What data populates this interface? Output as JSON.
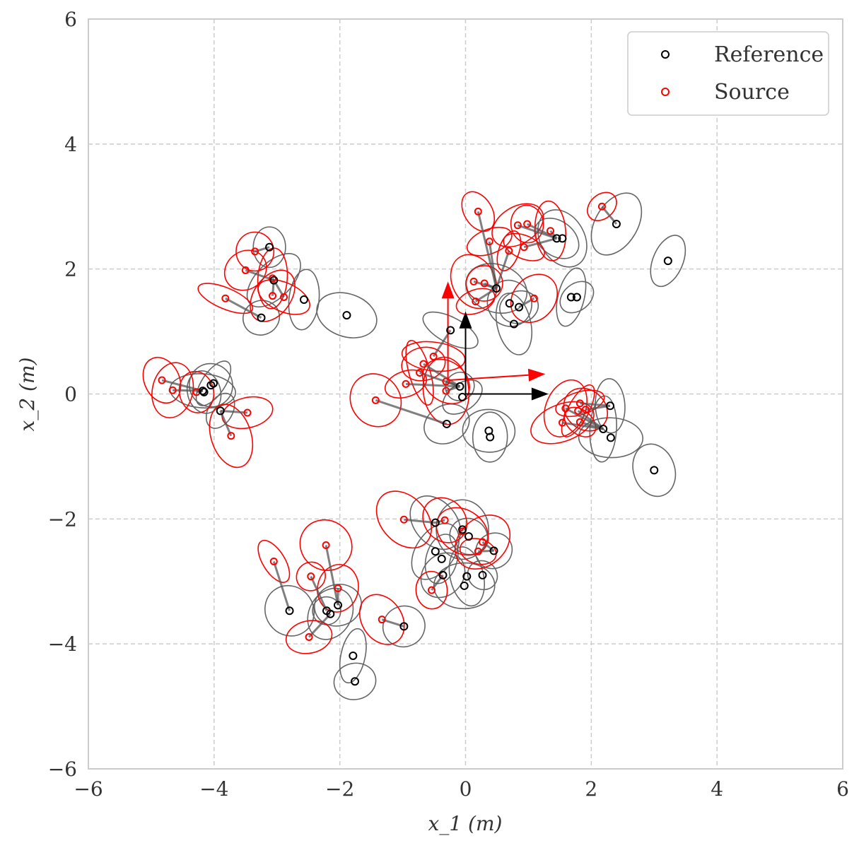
{
  "chart_data": {
    "type": "scatter",
    "xlabel": "x_1 (m)",
    "ylabel": "x_2 (m)",
    "xlim": [
      -6,
      6
    ],
    "ylim": [
      -6,
      6
    ],
    "xticks": [
      -6,
      -4,
      -2,
      0,
      2,
      4,
      6
    ],
    "yticks": [
      -6,
      -4,
      -2,
      0,
      2,
      4,
      6
    ],
    "grid": true,
    "legend_position": "top-right",
    "legend": [
      {
        "label": "Reference",
        "color": "#000000"
      },
      {
        "label": "Source",
        "color": "#ff0000"
      }
    ],
    "colors": {
      "reference": "#000000",
      "source": "#ff0000",
      "reference_ellipse": "#666666",
      "link": "#555555",
      "grid": "#cccccc",
      "frame": "#cccccc"
    },
    "frames": {
      "reference": {
        "origin": [
          0,
          0
        ],
        "x_axis_end": [
          1.32,
          0
        ],
        "y_axis_end": [
          0,
          1.32
        ]
      },
      "source": {
        "origin": [
          -0.28,
          0.22
        ],
        "x_axis_end": [
          1.27,
          0.32
        ],
        "y_axis_end": [
          -0.28,
          1.8
        ]
      }
    },
    "series": [
      {
        "name": "Reference",
        "points": [
          [
            3.22,
            2.13
          ],
          [
            2.4,
            2.72
          ],
          [
            1.45,
            2.49
          ],
          [
            1.54,
            2.49
          ],
          [
            1.68,
            1.55
          ],
          [
            1.77,
            1.55
          ],
          [
            0.49,
            1.69
          ],
          [
            0.7,
            1.45
          ],
          [
            0.85,
            1.39
          ],
          [
            0.77,
            1.12
          ],
          [
            -0.24,
            1.02
          ],
          [
            -3.12,
            2.35
          ],
          [
            -3.05,
            1.82
          ],
          [
            -3.25,
            1.22
          ],
          [
            -2.57,
            1.51
          ],
          [
            -1.89,
            1.26
          ],
          [
            -4.01,
            0.17
          ],
          [
            -4.05,
            0.14
          ],
          [
            -4.16,
            0.03
          ],
          [
            -4.18,
            0.05
          ],
          [
            -3.9,
            -0.27
          ],
          [
            -0.09,
            0.12
          ],
          [
            -0.05,
            -0.05
          ],
          [
            -0.3,
            -0.48
          ],
          [
            0.37,
            -0.59
          ],
          [
            0.39,
            -0.69
          ],
          [
            2.3,
            -0.19
          ],
          [
            2.19,
            -0.56
          ],
          [
            2.31,
            -0.7
          ],
          [
            3.0,
            -1.22
          ],
          [
            -0.48,
            -2.06
          ],
          [
            -0.05,
            -2.17
          ],
          [
            0.05,
            -2.28
          ],
          [
            -0.48,
            -2.52
          ],
          [
            -0.38,
            -2.64
          ],
          [
            0.45,
            -2.51
          ],
          [
            -0.36,
            -2.9
          ],
          [
            0.02,
            -2.92
          ],
          [
            0.27,
            -2.9
          ],
          [
            -0.02,
            -3.07
          ],
          [
            -2.8,
            -3.47
          ],
          [
            -2.21,
            -3.47
          ],
          [
            -2.15,
            -3.52
          ],
          [
            -2.03,
            -3.38
          ],
          [
            -1.79,
            -4.19
          ],
          [
            -1.76,
            -4.6
          ],
          [
            -0.98,
            -3.72
          ]
        ]
      },
      {
        "name": "Source",
        "points": [
          [
            0.2,
            2.92
          ],
          [
            0.98,
            2.72
          ],
          [
            0.83,
            2.7
          ],
          [
            1.35,
            2.61
          ],
          [
            0.38,
            2.44
          ],
          [
            0.69,
            2.29
          ],
          [
            0.93,
            2.35
          ],
          [
            2.17,
            3.0
          ],
          [
            0.13,
            1.8
          ],
          [
            0.3,
            1.77
          ],
          [
            0.16,
            1.48
          ],
          [
            1.09,
            1.53
          ],
          [
            -3.35,
            2.28
          ],
          [
            -3.5,
            1.98
          ],
          [
            -3.07,
            1.85
          ],
          [
            -3.07,
            1.57
          ],
          [
            -2.89,
            1.55
          ],
          [
            -3.82,
            1.53
          ],
          [
            -4.83,
            0.22
          ],
          [
            -4.66,
            0.06
          ],
          [
            -4.28,
            0.03
          ],
          [
            -3.47,
            -0.3
          ],
          [
            -3.73,
            -0.67
          ],
          [
            -0.51,
            0.6
          ],
          [
            -0.67,
            0.48
          ],
          [
            -0.73,
            0.34
          ],
          [
            -0.95,
            0.16
          ],
          [
            -0.31,
            0.2
          ],
          [
            -0.31,
            0.05
          ],
          [
            -1.43,
            -0.1
          ],
          [
            1.59,
            -0.23
          ],
          [
            1.82,
            -0.15
          ],
          [
            1.79,
            -0.27
          ],
          [
            1.91,
            -0.25
          ],
          [
            1.54,
            -0.46
          ],
          [
            1.82,
            -0.45
          ],
          [
            -0.98,
            -2.01
          ],
          [
            -0.33,
            -2.02
          ],
          [
            -0.05,
            -2.2
          ],
          [
            0.27,
            -2.37
          ],
          [
            0.2,
            -2.52
          ],
          [
            -0.54,
            -3.14
          ],
          [
            -3.05,
            -2.68
          ],
          [
            -2.22,
            -2.42
          ],
          [
            -2.46,
            -2.92
          ],
          [
            -2.03,
            -3.11
          ],
          [
            -2.49,
            -3.89
          ],
          [
            -1.33,
            -3.61
          ]
        ]
      }
    ]
  }
}
